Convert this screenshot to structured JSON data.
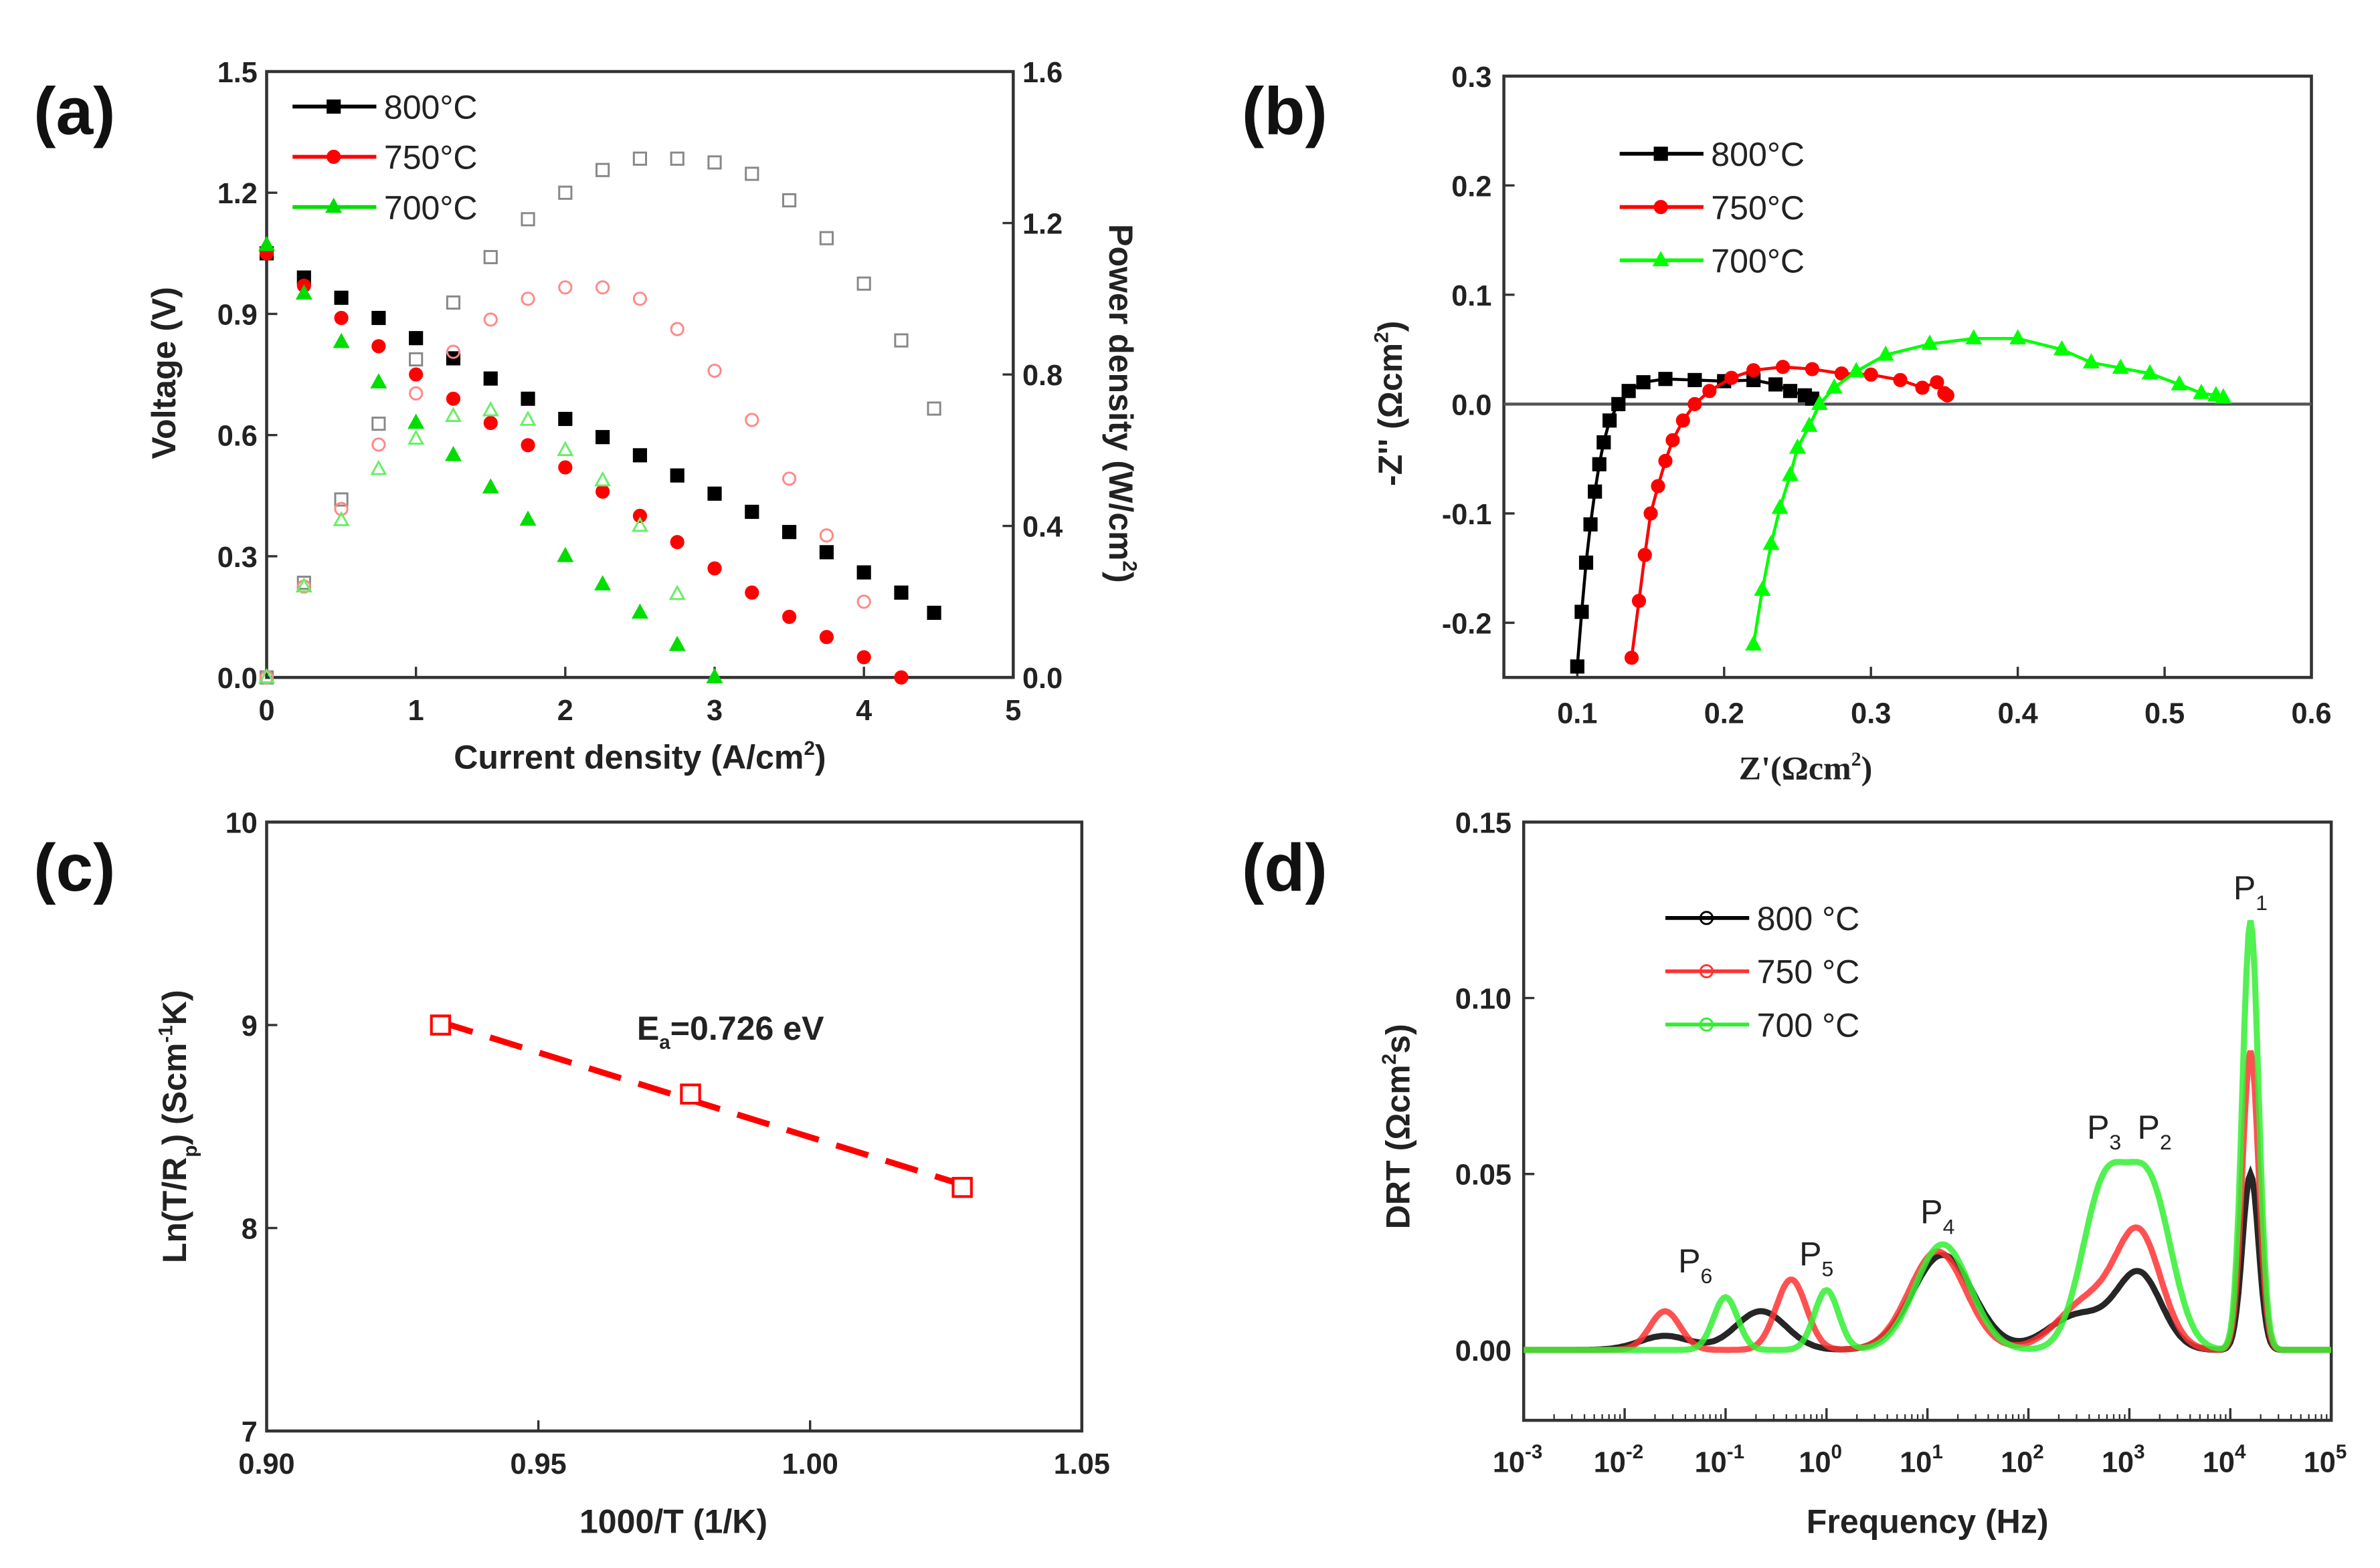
{
  "chart_data": [
    {
      "panel": "(a)",
      "type": "scatter",
      "xlabel": "Current density (A/cm",
      "xlabel_sup": "2",
      "xlabel_end": ")",
      "ylabel": "Voltage (V)",
      "y2label": "Power density (W/cm",
      "y2label_sup": "2",
      "y2label_end": ")",
      "xlim": [
        0,
        5
      ],
      "ylim": [
        0,
        1.5
      ],
      "y2lim": [
        0,
        1.6
      ],
      "xticks": [
        0,
        1,
        2,
        3,
        4,
        5
      ],
      "yticks": [
        "0.0",
        "0.3",
        "0.6",
        "0.9",
        "1.2",
        "1.5"
      ],
      "y2ticks": [
        "0.0",
        "0.4",
        "0.8",
        "1.2",
        "1.6"
      ],
      "legend": [
        "800°C",
        "750°C",
        "700°C"
      ],
      "legend_position": "top-left",
      "series": [
        {
          "name": "800°C",
          "color": "#000000",
          "marker": "square",
          "current": [
            0,
            0.25,
            0.5,
            0.75,
            1,
            1.25,
            1.5,
            1.75,
            2,
            2.25,
            2.5,
            2.75,
            3,
            3.25,
            3.5,
            3.75,
            4,
            4.25,
            4.47
          ],
          "voltage": [
            1.05,
            0.99,
            0.94,
            0.89,
            0.84,
            0.79,
            0.74,
            0.69,
            0.64,
            0.595,
            0.55,
            0.5,
            0.455,
            0.41,
            0.36,
            0.31,
            0.26,
            0.21,
            0.16
          ],
          "power": [
            0,
            0.25,
            0.47,
            0.67,
            0.84,
            0.99,
            1.11,
            1.21,
            1.28,
            1.34,
            1.37,
            1.37,
            1.36,
            1.33,
            1.26,
            1.16,
            1.04,
            0.89,
            0.71
          ]
        },
        {
          "name": "750°C",
          "color": "#ff0000",
          "marker": "circle",
          "current": [
            0,
            0.25,
            0.5,
            0.75,
            1,
            1.25,
            1.5,
            1.75,
            2,
            2.25,
            2.5,
            2.75,
            3,
            3.25,
            3.5,
            3.75,
            4,
            4.25
          ],
          "voltage": [
            1.05,
            0.97,
            0.89,
            0.82,
            0.75,
            0.69,
            0.63,
            0.575,
            0.52,
            0.46,
            0.4,
            0.335,
            0.27,
            0.21,
            0.15,
            0.1,
            0.05,
            0.0
          ],
          "power": [
            0,
            0.24,
            0.445,
            0.615,
            0.75,
            0.86,
            0.945,
            1.0,
            1.03,
            1.03,
            1.0,
            0.92,
            0.81,
            0.68,
            0.525,
            0.375,
            0.2,
            0.0
          ]
        },
        {
          "name": "700°C",
          "color": "#00dd00",
          "marker": "triangle",
          "current": [
            0,
            0.25,
            0.5,
            0.75,
            1,
            1.25,
            1.5,
            1.75,
            2,
            2.25,
            2.5,
            2.75,
            3
          ],
          "voltage": [
            1.07,
            0.95,
            0.83,
            0.73,
            0.63,
            0.55,
            0.47,
            0.39,
            0.3,
            0.23,
            0.16,
            0.08,
            0.0
          ],
          "power": [
            0,
            0.24,
            0.415,
            0.55,
            0.63,
            0.69,
            0.705,
            0.68,
            0.6,
            0.52,
            0.4,
            0.22,
            0.0
          ]
        }
      ]
    },
    {
      "panel": "(b)",
      "type": "line",
      "xlabel": "Z'(Ωcm",
      "xlabel_sup": "2",
      "xlabel_end": ")",
      "ylabel": "-Z'' (Ωcm",
      "ylabel_sup": "2",
      "ylabel_end": ")",
      "xlim": [
        0.05,
        0.6
      ],
      "ylim": [
        -0.25,
        0.3
      ],
      "xticks": [
        "0.1",
        "0.2",
        "0.3",
        "0.4",
        "0.5",
        "0.6"
      ],
      "yticks": [
        "-0.2",
        "-0.1",
        "0.0",
        "0.1",
        "0.2",
        "0.3"
      ],
      "legend": [
        "800°C",
        "750°C",
        "700°C"
      ],
      "legend_position": "top-left",
      "series": [
        {
          "name": "800°C",
          "color": "#000000",
          "marker": "square",
          "points": [
            [
              0.1,
              -0.24
            ],
            [
              0.103,
              -0.19
            ],
            [
              0.106,
              -0.145
            ],
            [
              0.109,
              -0.11
            ],
            [
              0.112,
              -0.08
            ],
            [
              0.115,
              -0.055
            ],
            [
              0.118,
              -0.035
            ],
            [
              0.122,
              -0.015
            ],
            [
              0.128,
              0.0
            ],
            [
              0.135,
              0.012
            ],
            [
              0.145,
              0.02
            ],
            [
              0.16,
              0.023
            ],
            [
              0.18,
              0.022
            ],
            [
              0.2,
              0.021
            ],
            [
              0.22,
              0.022
            ],
            [
              0.235,
              0.018
            ],
            [
              0.245,
              0.012
            ],
            [
              0.255,
              0.008
            ],
            [
              0.26,
              0.005
            ]
          ]
        },
        {
          "name": "750°C",
          "color": "#ff0000",
          "marker": "circle",
          "points": [
            [
              0.137,
              -0.232
            ],
            [
              0.142,
              -0.18
            ],
            [
              0.146,
              -0.138
            ],
            [
              0.15,
              -0.1
            ],
            [
              0.155,
              -0.075
            ],
            [
              0.16,
              -0.052
            ],
            [
              0.165,
              -0.033
            ],
            [
              0.172,
              -0.015
            ],
            [
              0.18,
              0.0
            ],
            [
              0.19,
              0.012
            ],
            [
              0.205,
              0.024
            ],
            [
              0.22,
              0.031
            ],
            [
              0.24,
              0.034
            ],
            [
              0.26,
              0.032
            ],
            [
              0.28,
              0.028
            ],
            [
              0.3,
              0.027
            ],
            [
              0.32,
              0.022
            ],
            [
              0.335,
              0.015
            ],
            [
              0.345,
              0.02
            ],
            [
              0.35,
              0.01
            ],
            [
              0.352,
              0.008
            ]
          ]
        },
        {
          "name": "700°C",
          "color": "#00ff00",
          "marker": "triangle",
          "points": [
            [
              0.22,
              -0.22
            ],
            [
              0.226,
              -0.17
            ],
            [
              0.232,
              -0.128
            ],
            [
              0.238,
              -0.095
            ],
            [
              0.245,
              -0.065
            ],
            [
              0.25,
              -0.04
            ],
            [
              0.258,
              -0.02
            ],
            [
              0.265,
              0.0
            ],
            [
              0.275,
              0.015
            ],
            [
              0.29,
              0.03
            ],
            [
              0.31,
              0.045
            ],
            [
              0.34,
              0.055
            ],
            [
              0.37,
              0.06
            ],
            [
              0.4,
              0.06
            ],
            [
              0.43,
              0.05
            ],
            [
              0.45,
              0.038
            ],
            [
              0.47,
              0.033
            ],
            [
              0.49,
              0.028
            ],
            [
              0.51,
              0.018
            ],
            [
              0.525,
              0.01
            ],
            [
              0.535,
              0.008
            ],
            [
              0.54,
              0.006
            ]
          ]
        }
      ]
    },
    {
      "panel": "(c)",
      "type": "scatter",
      "xlabel": "1000/T (1/K)",
      "ylabel": "Ln(T/R",
      "ylabel_sub": "p",
      "ylabel_mid": ") (Scm",
      "ylabel_sup": "-1",
      "ylabel_end": "K)",
      "xlim": [
        0.9,
        1.05
      ],
      "ylim": [
        7,
        10
      ],
      "xticks": [
        "0.90",
        "0.95",
        "1.00",
        "1.05"
      ],
      "yticks": [
        "7",
        "8",
        "9",
        "10"
      ],
      "annotation": {
        "text": "E",
        "sub": "a",
        "rest": "=0.726 eV"
      },
      "series": [
        {
          "name": "Ln(T/Rp)",
          "color": "#ff0000",
          "marker": "open-square",
          "fit": "dashed-linear",
          "points": [
            [
              0.932,
              9.0
            ],
            [
              0.978,
              8.66
            ],
            [
              1.028,
              8.2
            ]
          ]
        }
      ]
    },
    {
      "panel": "(d)",
      "type": "line",
      "xscale": "log",
      "xlabel": "Frequency (Hz)",
      "ylabel": "DRT (Ωcm",
      "ylabel_sup": "2",
      "ylabel_end": "s)",
      "xlim_log10": [
        -3,
        5
      ],
      "ylim": [
        -0.02,
        0.15
      ],
      "xticks_exp": [
        "-3",
        "-2",
        "-1",
        "0",
        "1",
        "2",
        "3",
        "4",
        "5"
      ],
      "xtick_base": "10",
      "yticks": [
        "0.00",
        "0.05",
        "0.10",
        "0.15"
      ],
      "legend": [
        "800 °C",
        "750 °C",
        "700 °C"
      ],
      "legend_position": "top-left",
      "peak_labels": [
        {
          "name": "P",
          "sub": "1",
          "log10_f": 4.2,
          "y": 0.128
        },
        {
          "name": "P",
          "sub": "2",
          "log10_f": 3.25,
          "y": 0.06
        },
        {
          "name": "P",
          "sub": "3",
          "log10_f": 2.75,
          "y": 0.06
        },
        {
          "name": "P",
          "sub": "4",
          "log10_f": 1.1,
          "y": 0.036
        },
        {
          "name": "P",
          "sub": "5",
          "log10_f": -0.1,
          "y": 0.024
        },
        {
          "name": "P",
          "sub": "6",
          "log10_f": -1.3,
          "y": 0.022
        }
      ],
      "series": [
        {
          "name": "800 °C",
          "color": "#000000",
          "gaussian_peaks_log10f_height_width": [
            [
              -1.6,
              0.004,
              0.25
            ],
            [
              -0.65,
              0.011,
              0.25
            ],
            [
              1.15,
              0.027,
              0.3
            ],
            [
              2.5,
              0.01,
              0.3
            ],
            [
              3.1,
              0.021,
              0.22
            ],
            [
              4.2,
              0.05,
              0.08
            ]
          ]
        },
        {
          "name": "750 °C",
          "color": "#ff3333",
          "gaussian_peaks_log10f_height_width": [
            [
              -1.6,
              0.011,
              0.15
            ],
            [
              -0.35,
              0.02,
              0.15
            ],
            [
              1.1,
              0.028,
              0.28
            ],
            [
              2.6,
              0.014,
              0.3
            ],
            [
              3.1,
              0.031,
              0.22
            ],
            [
              4.2,
              0.085,
              0.08
            ]
          ]
        },
        {
          "name": "700 °C",
          "color": "#33ee33",
          "gaussian_peaks_log10f_height_width": [
            [
              -1.0,
              0.015,
              0.12
            ],
            [
              0.0,
              0.017,
              0.12
            ],
            [
              1.15,
              0.03,
              0.27
            ],
            [
              2.75,
              0.045,
              0.22
            ],
            [
              3.2,
              0.045,
              0.22
            ],
            [
              4.2,
              0.122,
              0.08
            ]
          ]
        }
      ]
    }
  ]
}
